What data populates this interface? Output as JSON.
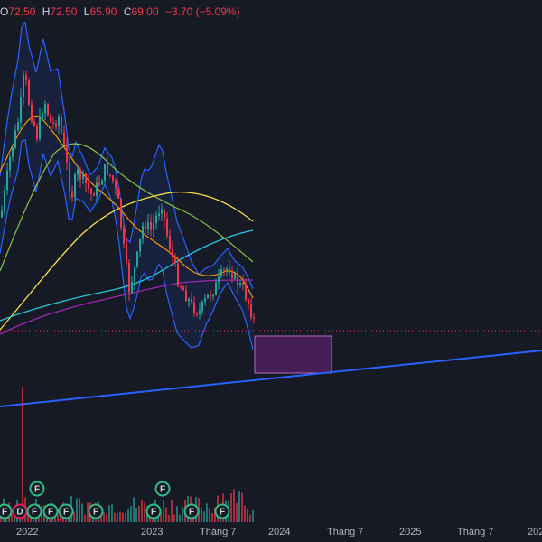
{
  "header": {
    "open_label": "O",
    "open": "72.50",
    "high_label": "H",
    "high": "72.50",
    "low_label": "L",
    "low": "65.90",
    "close_label": "C",
    "close": "69.00",
    "change": "−3.70 (−5.09%)"
  },
  "time_axis": [
    "2022",
    "2023",
    "Tháng 7",
    "2024",
    "Tháng 7",
    "2025",
    "Tháng 7",
    "202"
  ],
  "events": [
    {
      "kind": "F",
      "color": "#2ebd85"
    },
    {
      "kind": "D",
      "color": "#e91e63"
    },
    {
      "kind": "F",
      "color": "#2ebd85"
    },
    {
      "kind": "F",
      "color": "#2ebd85"
    },
    {
      "kind": "F",
      "color": "#2ebd85"
    },
    {
      "kind": "F",
      "color": "#2ebd85"
    },
    {
      "kind": "F",
      "color": "#2ebd85"
    },
    {
      "kind": "F",
      "color": "#2ebd85"
    },
    {
      "kind": "F",
      "color": "#2ebd85"
    },
    {
      "kind": "F",
      "color": "#2ebd85"
    },
    {
      "kind": "F",
      "color": "#2ebd85"
    }
  ],
  "colors": {
    "background": "#161a25",
    "up": "#26a69a",
    "down": "#f23645",
    "bollinger": "#2962ff",
    "trendline": "#2962ff",
    "ma_fast": "#ff9800",
    "ma_mid": "#26c6da",
    "ma_slow": "#f9e04b",
    "ma_long": "#9c27b0",
    "target_box": "#9c27b0"
  }
}
